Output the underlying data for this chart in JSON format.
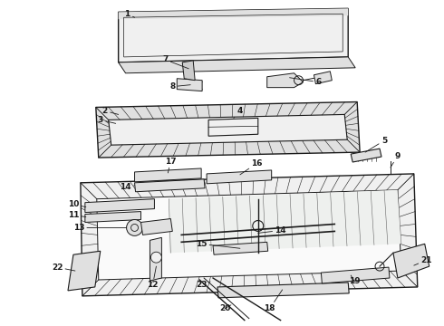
{
  "bg_color": "#ffffff",
  "line_color": "#1a1a1a",
  "fill_light": "#f0f0f0",
  "fill_mid": "#e0e0e0",
  "fill_dark": "#cccccc",
  "fig_width": 4.9,
  "fig_height": 3.6,
  "dpi": 100,
  "font_size": 6.5,
  "lw_main": 0.9,
  "lw_thin": 0.5
}
